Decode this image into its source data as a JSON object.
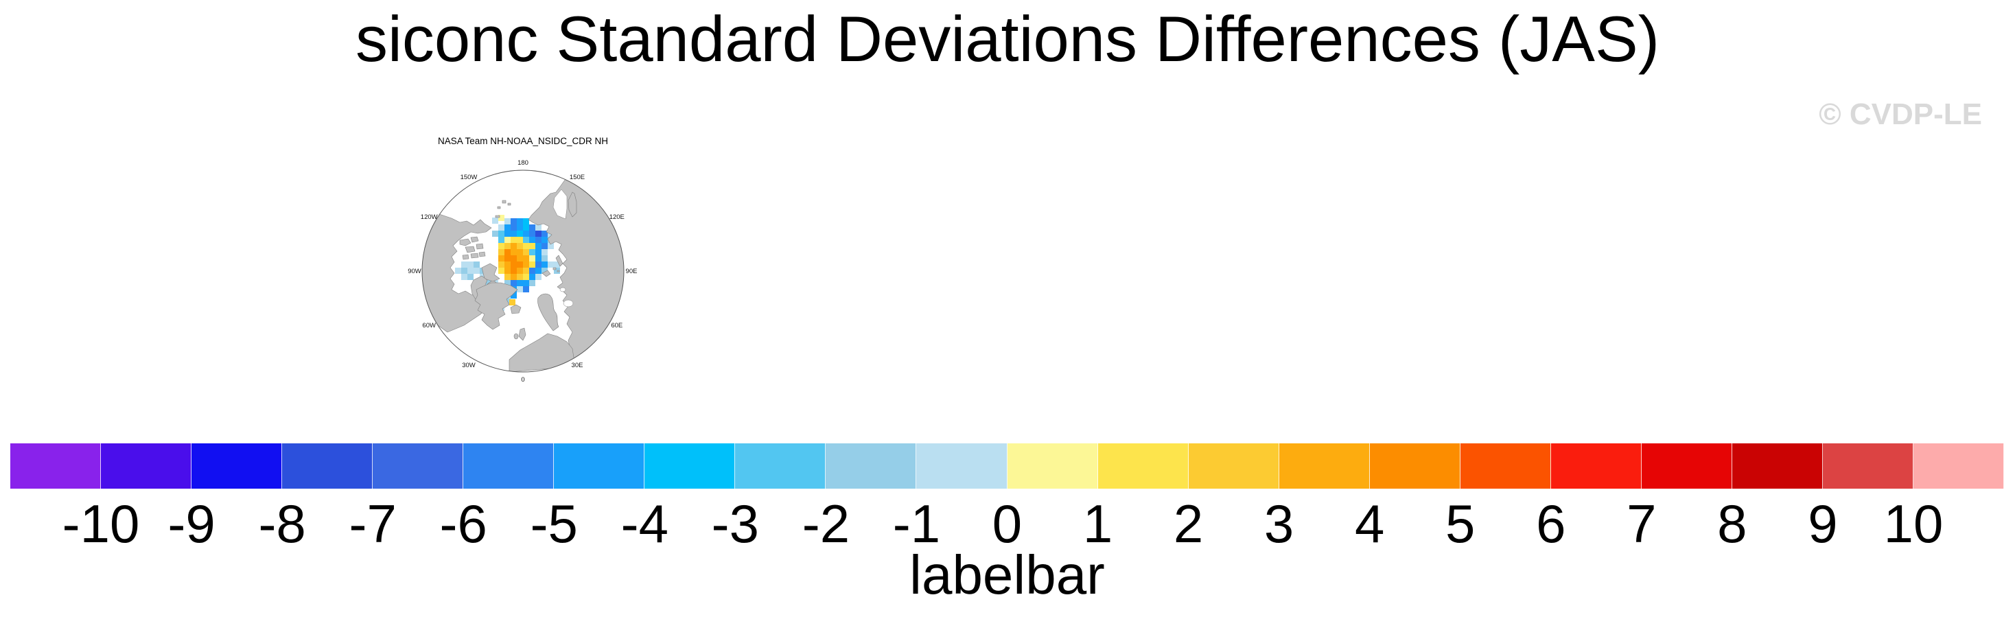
{
  "header": {
    "title": "siconc Standard Deviations Differences (JAS)",
    "watermark": "© CVDP-LE"
  },
  "map": {
    "title": "NASA Team NH-NOAA_NSIDC_CDR NH",
    "longitude_labels": [
      {
        "text": "180",
        "angle": 0
      },
      {
        "text": "150E",
        "angle": 30
      },
      {
        "text": "120E",
        "angle": 60
      },
      {
        "text": "90E",
        "angle": 90
      },
      {
        "text": "60E",
        "angle": 120
      },
      {
        "text": "30E",
        "angle": 150
      },
      {
        "text": "0",
        "angle": 180
      },
      {
        "text": "30W",
        "angle": 210
      },
      {
        "text": "60W",
        "angle": 240
      },
      {
        "text": "90W",
        "angle": 270
      },
      {
        "text": "120W",
        "angle": 300
      },
      {
        "text": "150W",
        "angle": 330
      }
    ]
  },
  "chart_data": {
    "type": "heatmap",
    "title": "siconc Standard Deviations Differences (JAS)",
    "panel_title": "NASA Team NH-NOAA_NSIDC_CDR NH",
    "projection": "polar-stereographic-northern-hemisphere",
    "land_color": "#c1c1c1",
    "ocean_color": "#ffffff",
    "colorbar": {
      "label": "labelbar",
      "ticks": [
        "-10",
        "-9",
        "-8",
        "-7",
        "-6",
        "-5",
        "-4",
        "-3",
        "-2",
        "-1",
        "0",
        "1",
        "2",
        "3",
        "4",
        "5",
        "6",
        "7",
        "8",
        "9",
        "10"
      ],
      "tick_range": [
        -10,
        10
      ],
      "colors": [
        "#8922EB",
        "#4A0EEB",
        "#110FF2",
        "#2C50DC",
        "#3A68E2",
        "#2E84F1",
        "#18A0FA",
        "#00C0FA",
        "#52C6F1",
        "#95CEE8",
        "#BADFF1",
        "#FCF796",
        "#FDE44C",
        "#FCCB32",
        "#FDAC0F",
        "#FC8D00",
        "#FB5300",
        "#FA1D0D",
        "#E60505",
        "#CA0303",
        "#DC4343",
        "#FDABAB"
      ]
    },
    "map_cells": [
      [
        153,
        96,
        10
      ],
      [
        162,
        96,
        5
      ],
      [
        171,
        96,
        6
      ],
      [
        180,
        96,
        7
      ],
      [
        144,
        105,
        10
      ],
      [
        153,
        105,
        6
      ],
      [
        162,
        105,
        5
      ],
      [
        171,
        105,
        6
      ],
      [
        180,
        105,
        7
      ],
      [
        189,
        105,
        5
      ],
      [
        198,
        105,
        10
      ],
      [
        135,
        114,
        9
      ],
      [
        144,
        114,
        8
      ],
      [
        153,
        114,
        6
      ],
      [
        162,
        114,
        6
      ],
      [
        171,
        114,
        7
      ],
      [
        180,
        114,
        6
      ],
      [
        189,
        114,
        5
      ],
      [
        198,
        114,
        3
      ],
      [
        207,
        114,
        5
      ],
      [
        216,
        114,
        10
      ],
      [
        144,
        123,
        8
      ],
      [
        153,
        123,
        11
      ],
      [
        162,
        123,
        12
      ],
      [
        171,
        123,
        12
      ],
      [
        180,
        123,
        8
      ],
      [
        189,
        123,
        6
      ],
      [
        198,
        123,
        5
      ],
      [
        207,
        123,
        6
      ],
      [
        216,
        123,
        9
      ],
      [
        144,
        132,
        12
      ],
      [
        153,
        132,
        13
      ],
      [
        162,
        132,
        14
      ],
      [
        171,
        132,
        13
      ],
      [
        180,
        132,
        12
      ],
      [
        189,
        132,
        12
      ],
      [
        198,
        132,
        6
      ],
      [
        207,
        132,
        5
      ],
      [
        216,
        132,
        10
      ],
      [
        144,
        141,
        13
      ],
      [
        153,
        141,
        15
      ],
      [
        162,
        141,
        14
      ],
      [
        171,
        141,
        14
      ],
      [
        180,
        141,
        13
      ],
      [
        189,
        141,
        8
      ],
      [
        198,
        141,
        6
      ],
      [
        207,
        141,
        10
      ],
      [
        144,
        150,
        14
      ],
      [
        153,
        150,
        15
      ],
      [
        162,
        150,
        15
      ],
      [
        171,
        150,
        14
      ],
      [
        180,
        150,
        14
      ],
      [
        189,
        150,
        11
      ],
      [
        198,
        150,
        6
      ],
      [
        207,
        150,
        9
      ],
      [
        144,
        159,
        13
      ],
      [
        153,
        159,
        14
      ],
      [
        162,
        159,
        15
      ],
      [
        171,
        159,
        15
      ],
      [
        180,
        159,
        14
      ],
      [
        189,
        159,
        12
      ],
      [
        198,
        159,
        5
      ],
      [
        207,
        159,
        6
      ],
      [
        216,
        159,
        10
      ],
      [
        225,
        159,
        10
      ],
      [
        144,
        168,
        12
      ],
      [
        153,
        168,
        14
      ],
      [
        162,
        168,
        15
      ],
      [
        171,
        168,
        14
      ],
      [
        180,
        168,
        13
      ],
      [
        189,
        168,
        5
      ],
      [
        198,
        168,
        6
      ],
      [
        207,
        168,
        9
      ],
      [
        225,
        168,
        9
      ],
      [
        153,
        177,
        13
      ],
      [
        162,
        177,
        14
      ],
      [
        171,
        177,
        13
      ],
      [
        180,
        177,
        12
      ],
      [
        189,
        177,
        6
      ],
      [
        198,
        177,
        10
      ],
      [
        153,
        186,
        9
      ],
      [
        162,
        186,
        5
      ],
      [
        171,
        186,
        6
      ],
      [
        180,
        186,
        6
      ],
      [
        189,
        186,
        9
      ],
      [
        144,
        195,
        10
      ],
      [
        153,
        195,
        5
      ],
      [
        162,
        195,
        6
      ],
      [
        171,
        195,
        10
      ],
      [
        180,
        195,
        5
      ],
      [
        135,
        204,
        9
      ],
      [
        144,
        204,
        5
      ],
      [
        153,
        204,
        10
      ],
      [
        162,
        204,
        6
      ],
      [
        126,
        213,
        10
      ],
      [
        135,
        213,
        6
      ],
      [
        144,
        213,
        5
      ],
      [
        153,
        213,
        9
      ],
      [
        160,
        214,
        13
      ],
      [
        117,
        222,
        9
      ],
      [
        126,
        222,
        5
      ],
      [
        135,
        222,
        12
      ],
      [
        144,
        222,
        10
      ],
      [
        99,
        220,
        13
      ],
      [
        90,
        159,
        10
      ],
      [
        99,
        159,
        10
      ],
      [
        108,
        159,
        9
      ],
      [
        81,
        168,
        10
      ],
      [
        90,
        168,
        9
      ],
      [
        99,
        168,
        10
      ],
      [
        108,
        168,
        10
      ],
      [
        117,
        168,
        9
      ],
      [
        90,
        177,
        10
      ],
      [
        99,
        177,
        9
      ],
      [
        117,
        177,
        10
      ],
      [
        108,
        186,
        10
      ],
      [
        126,
        186,
        9
      ],
      [
        135,
        186,
        10
      ],
      [
        117,
        195,
        10
      ],
      [
        126,
        195,
        10
      ],
      [
        108,
        204,
        10
      ],
      [
        117,
        204,
        10
      ],
      [
        246,
        73,
        11
      ],
      [
        246,
        82,
        7
      ],
      [
        255,
        82,
        13
      ],
      [
        248,
        91,
        13
      ],
      [
        144,
        91,
        11
      ],
      [
        135,
        95,
        10
      ]
    ]
  }
}
